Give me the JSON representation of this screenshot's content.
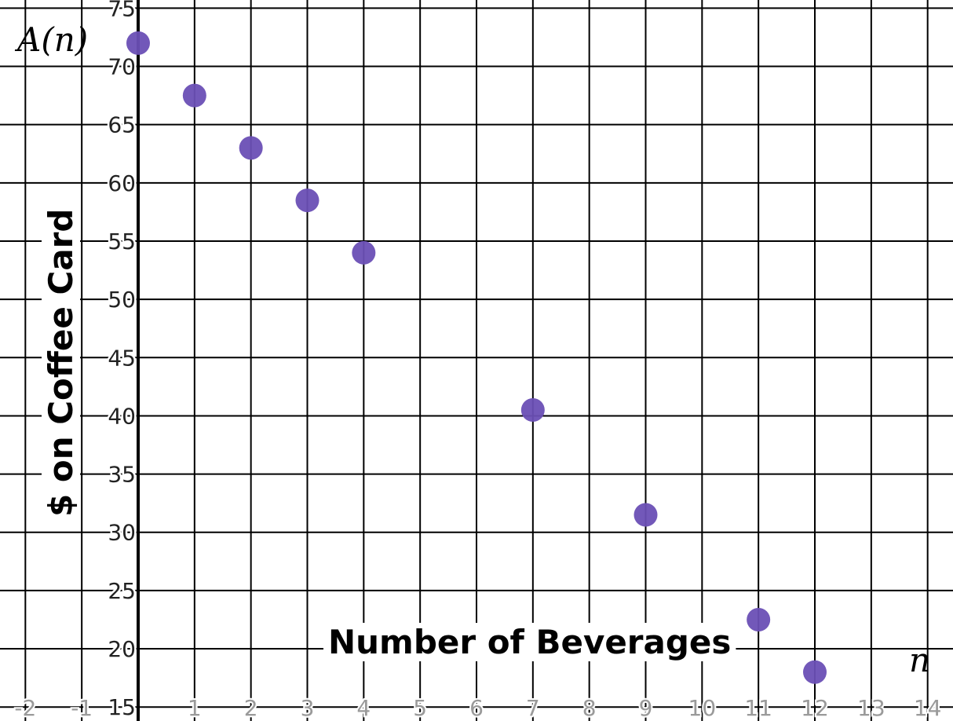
{
  "chart_data": {
    "type": "scatter",
    "xlabel": "Number of Beverages",
    "ylabel": "$ on Coffee Card",
    "x_var_label": "n",
    "y_var_label": "A(n)",
    "xlim": [
      -2.45,
      14.45
    ],
    "ylim": [
      13.8,
      75.7
    ],
    "x_ticks": [
      -2,
      -1,
      1,
      2,
      3,
      4,
      5,
      6,
      7,
      8,
      9,
      10,
      11,
      12,
      13,
      14
    ],
    "y_ticks": [
      15,
      20,
      25,
      30,
      35,
      40,
      45,
      50,
      55,
      60,
      65,
      70,
      75
    ],
    "grid": true,
    "point_color": "#6a4fb5",
    "points": [
      {
        "x": 0,
        "y": 72
      },
      {
        "x": 1,
        "y": 67.5
      },
      {
        "x": 2,
        "y": 63
      },
      {
        "x": 3,
        "y": 58.5
      },
      {
        "x": 4,
        "y": 54
      },
      {
        "x": 7,
        "y": 40.5
      },
      {
        "x": 9,
        "y": 31.5
      },
      {
        "x": 11,
        "y": 22.5
      },
      {
        "x": 12,
        "y": 18
      }
    ]
  }
}
